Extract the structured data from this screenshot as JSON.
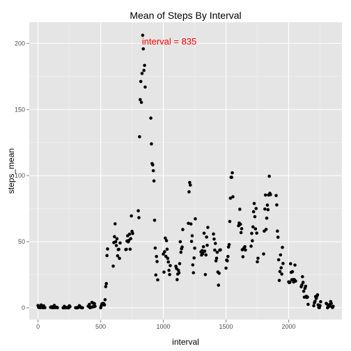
{
  "chart_data": {
    "type": "scatter",
    "title": "Mean of Steps By Interval",
    "xlabel": "interval",
    "ylabel": "steps_mean",
    "xlim": [
      -70,
      2425
    ],
    "ylim": [
      -9,
      216
    ],
    "xticks": [
      0,
      500,
      1000,
      1500,
      2000
    ],
    "xtick_labels": [
      "0",
      "500",
      "1000",
      "1500",
      "2000"
    ],
    "yticks": [
      0,
      50,
      100,
      150,
      200
    ],
    "ytick_labels": [
      "0",
      "50",
      "100",
      "150",
      "200"
    ],
    "grid": true,
    "panel_color": "#e5e5e5",
    "grid_color": "#ffffff",
    "point_color": "#000000",
    "annotation": {
      "text": "interval = 835",
      "x": 835,
      "y": 206,
      "color": "#ff0000"
    },
    "points": [
      [
        0,
        1.7
      ],
      [
        5,
        0.3
      ],
      [
        10,
        0.1
      ],
      [
        15,
        0.2
      ],
      [
        20,
        0.1
      ],
      [
        25,
        2.1
      ],
      [
        30,
        0.5
      ],
      [
        35,
        0.9
      ],
      [
        40,
        0
      ],
      [
        45,
        1.5
      ],
      [
        50,
        0.3
      ],
      [
        55,
        0.1
      ],
      [
        100,
        0.3
      ],
      [
        105,
        0.7
      ],
      [
        110,
        0.2
      ],
      [
        115,
        0.3
      ],
      [
        120,
        0
      ],
      [
        125,
        1.1
      ],
      [
        130,
        1.8
      ],
      [
        135,
        0.2
      ],
      [
        140,
        0.2
      ],
      [
        145,
        0.4
      ],
      [
        150,
        0.3
      ],
      [
        155,
        0
      ],
      [
        200,
        0
      ],
      [
        205,
        0
      ],
      [
        210,
        1.1
      ],
      [
        215,
        0
      ],
      [
        220,
        0
      ],
      [
        225,
        0.1
      ],
      [
        230,
        0
      ],
      [
        235,
        0.2
      ],
      [
        240,
        0
      ],
      [
        245,
        0
      ],
      [
        250,
        1.5
      ],
      [
        255,
        0.9
      ],
      [
        300,
        0
      ],
      [
        305,
        0
      ],
      [
        310,
        0
      ],
      [
        315,
        0
      ],
      [
        320,
        0.2
      ],
      [
        325,
        0.6
      ],
      [
        330,
        1.6
      ],
      [
        335,
        0.6
      ],
      [
        340,
        0.5
      ],
      [
        345,
        0.1
      ],
      [
        350,
        0
      ],
      [
        355,
        0
      ],
      [
        400,
        1.2
      ],
      [
        405,
        0.9
      ],
      [
        410,
        2.6
      ],
      [
        415,
        0
      ],
      [
        420,
        0.3
      ],
      [
        425,
        0.4
      ],
      [
        430,
        4.1
      ],
      [
        435,
        0.7
      ],
      [
        440,
        3.5
      ],
      [
        445,
        0.8
      ],
      [
        450,
        3.1
      ],
      [
        455,
        1.1
      ],
      [
        500,
        0
      ],
      [
        505,
        1.6
      ],
      [
        510,
        3
      ],
      [
        515,
        2.2
      ],
      [
        520,
        3.3
      ],
      [
        525,
        3
      ],
      [
        530,
        2.1
      ],
      [
        535,
        6.1
      ],
      [
        540,
        16
      ],
      [
        545,
        18.3
      ],
      [
        550,
        39.5
      ],
      [
        555,
        44.5
      ],
      [
        600,
        31.5
      ],
      [
        605,
        49.3
      ],
      [
        610,
        53.8
      ],
      [
        615,
        63.5
      ],
      [
        620,
        50
      ],
      [
        625,
        47.1
      ],
      [
        630,
        52.2
      ],
      [
        635,
        39.3
      ],
      [
        640,
        44
      ],
      [
        645,
        44.2
      ],
      [
        650,
        37.4
      ],
      [
        655,
        49
      ],
      [
        700,
        44
      ],
      [
        705,
        44.2
      ],
      [
        710,
        50.5
      ],
      [
        715,
        54.5
      ],
      [
        720,
        49.9
      ],
      [
        725,
        51
      ],
      [
        730,
        55.7
      ],
      [
        735,
        44.3
      ],
      [
        740,
        52.3
      ],
      [
        745,
        69.5
      ],
      [
        750,
        57.8
      ],
      [
        755,
        56.2
      ],
      [
        800,
        73.4
      ],
      [
        805,
        68.2
      ],
      [
        810,
        129.4
      ],
      [
        815,
        157.5
      ],
      [
        820,
        171.2
      ],
      [
        825,
        155.4
      ],
      [
        830,
        177.3
      ],
      [
        835,
        206.2
      ],
      [
        840,
        195.9
      ],
      [
        845,
        179.6
      ],
      [
        850,
        183.4
      ],
      [
        855,
        167
      ],
      [
        900,
        143.5
      ],
      [
        905,
        124
      ],
      [
        910,
        109.1
      ],
      [
        915,
        108.1
      ],
      [
        920,
        103.7
      ],
      [
        925,
        95.97
      ],
      [
        930,
        66.2
      ],
      [
        935,
        45.2
      ],
      [
        940,
        24.8
      ],
      [
        945,
        38.8
      ],
      [
        950,
        34.98
      ],
      [
        955,
        21.1
      ],
      [
        1000,
        40.6
      ],
      [
        1005,
        26.98
      ],
      [
        1010,
        42.4
      ],
      [
        1015,
        52.7
      ],
      [
        1020,
        38.9
      ],
      [
        1025,
        50.8
      ],
      [
        1030,
        44.3
      ],
      [
        1035,
        37.4
      ],
      [
        1040,
        34.7
      ],
      [
        1045,
        28.3
      ],
      [
        1050,
        25.1
      ],
      [
        1055,
        31.9
      ],
      [
        1100,
        31.4
      ],
      [
        1105,
        29.7
      ],
      [
        1110,
        21.3
      ],
      [
        1115,
        25.5
      ],
      [
        1120,
        28.4
      ],
      [
        1125,
        26.5
      ],
      [
        1130,
        33.4
      ],
      [
        1135,
        49.98
      ],
      [
        1140,
        42
      ],
      [
        1145,
        44.6
      ],
      [
        1150,
        46
      ],
      [
        1155,
        59.2
      ],
      [
        1200,
        63.9
      ],
      [
        1205,
        87.7
      ],
      [
        1210,
        94.8
      ],
      [
        1215,
        92.8
      ],
      [
        1220,
        63.4
      ],
      [
        1225,
        50.2
      ],
      [
        1230,
        54.5
      ],
      [
        1235,
        32.4
      ],
      [
        1240,
        26.5
      ],
      [
        1245,
        37.7
      ],
      [
        1250,
        45.1
      ],
      [
        1255,
        67.3
      ],
      [
        1300,
        42.3
      ],
      [
        1305,
        39.9
      ],
      [
        1310,
        43.3
      ],
      [
        1315,
        40.98
      ],
      [
        1320,
        46.2
      ],
      [
        1325,
        56.4
      ],
      [
        1330,
        42.8
      ],
      [
        1335,
        25.1
      ],
      [
        1340,
        39.97
      ],
      [
        1345,
        53.5
      ],
      [
        1350,
        47.3
      ],
      [
        1355,
        60.8
      ],
      [
        1400,
        55.8
      ],
      [
        1405,
        51.96
      ],
      [
        1410,
        43.6
      ],
      [
        1415,
        48.7
      ],
      [
        1420,
        35.5
      ],
      [
        1425,
        37.5
      ],
      [
        1430,
        42
      ],
      [
        1435,
        27.1
      ],
      [
        1440,
        17.1
      ],
      [
        1445,
        26.1
      ],
      [
        1450,
        43.6
      ],
      [
        1455,
        43.8
      ],
      [
        1500,
        30
      ],
      [
        1505,
        36.1
      ],
      [
        1510,
        35.5
      ],
      [
        1515,
        38.8
      ],
      [
        1520,
        45.96
      ],
      [
        1525,
        47.8
      ],
      [
        1530,
        65.3
      ],
      [
        1535,
        82.9
      ],
      [
        1540,
        98.7
      ],
      [
        1545,
        98.7
      ],
      [
        1550,
        102.1
      ],
      [
        1555,
        83.96
      ],
      [
        1600,
        62.1
      ],
      [
        1605,
        64.1
      ],
      [
        1610,
        74.5
      ],
      [
        1615,
        63.2
      ],
      [
        1620,
        56.9
      ],
      [
        1625,
        59.8
      ],
      [
        1630,
        43.9
      ],
      [
        1635,
        38.6
      ],
      [
        1640,
        44.7
      ],
      [
        1645,
        45.5
      ],
      [
        1650,
        46.2
      ],
      [
        1655,
        43.7
      ],
      [
        1700,
        46.6
      ],
      [
        1705,
        56.3
      ],
      [
        1710,
        50.7
      ],
      [
        1715,
        61.2
      ],
      [
        1720,
        72.7
      ],
      [
        1725,
        78.9
      ],
      [
        1730,
        68.9
      ],
      [
        1735,
        59.7
      ],
      [
        1740,
        75.1
      ],
      [
        1745,
        56.5
      ],
      [
        1750,
        34.8
      ],
      [
        1755,
        37.5
      ],
      [
        1800,
        40.7
      ],
      [
        1805,
        58
      ],
      [
        1810,
        74.7
      ],
      [
        1815,
        85.3
      ],
      [
        1820,
        59.3
      ],
      [
        1825,
        67.8
      ],
      [
        1830,
        77.7
      ],
      [
        1835,
        74.2
      ],
      [
        1840,
        85.3
      ],
      [
        1845,
        99.5
      ],
      [
        1850,
        86.6
      ],
      [
        1855,
        85.6
      ],
      [
        1900,
        84.9
      ],
      [
        1905,
        77.8
      ],
      [
        1910,
        58
      ],
      [
        1915,
        53.4
      ],
      [
        1920,
        36.3
      ],
      [
        1925,
        20.7
      ],
      [
        1930,
        27.4
      ],
      [
        1935,
        40
      ],
      [
        1940,
        30.2
      ],
      [
        1945,
        25.5
      ],
      [
        1950,
        45.7
      ],
      [
        1955,
        33.5
      ],
      [
        2000,
        19.6
      ],
      [
        2005,
        19
      ],
      [
        2010,
        19.3
      ],
      [
        2015,
        33.3
      ],
      [
        2020,
        26.8
      ],
      [
        2025,
        21.2
      ],
      [
        2030,
        27.3
      ],
      [
        2035,
        21.3
      ],
      [
        2040,
        19.5
      ],
      [
        2045,
        21.3
      ],
      [
        2050,
        32.3
      ],
      [
        2055,
        20.2
      ],
      [
        2100,
        15.9
      ],
      [
        2105,
        17.2
      ],
      [
        2110,
        23.5
      ],
      [
        2115,
        19.2
      ],
      [
        2120,
        12.5
      ],
      [
        2125,
        8
      ],
      [
        2130,
        14.7
      ],
      [
        2135,
        16.3
      ],
      [
        2140,
        8.7
      ],
      [
        2145,
        7.8
      ],
      [
        2150,
        8.1
      ],
      [
        2155,
        2.6
      ],
      [
        2200,
        1.5
      ],
      [
        2205,
        3.7
      ],
      [
        2210,
        4.8
      ],
      [
        2215,
        8.5
      ],
      [
        2220,
        7.1
      ],
      [
        2225,
        8.7
      ],
      [
        2230,
        9.8
      ],
      [
        2235,
        2.2
      ],
      [
        2240,
        0.3
      ],
      [
        2245,
        0.1
      ],
      [
        2250,
        1.6
      ],
      [
        2255,
        4.6
      ],
      [
        2300,
        3.3
      ],
      [
        2305,
        2.8
      ],
      [
        2310,
        0
      ],
      [
        2315,
        0.8
      ],
      [
        2320,
        0.96
      ],
      [
        2325,
        1.6
      ],
      [
        2330,
        2.6
      ],
      [
        2335,
        4.7
      ],
      [
        2340,
        3.3
      ],
      [
        2345,
        0.6
      ],
      [
        2350,
        0.2
      ],
      [
        2355,
        1.1
      ]
    ]
  }
}
